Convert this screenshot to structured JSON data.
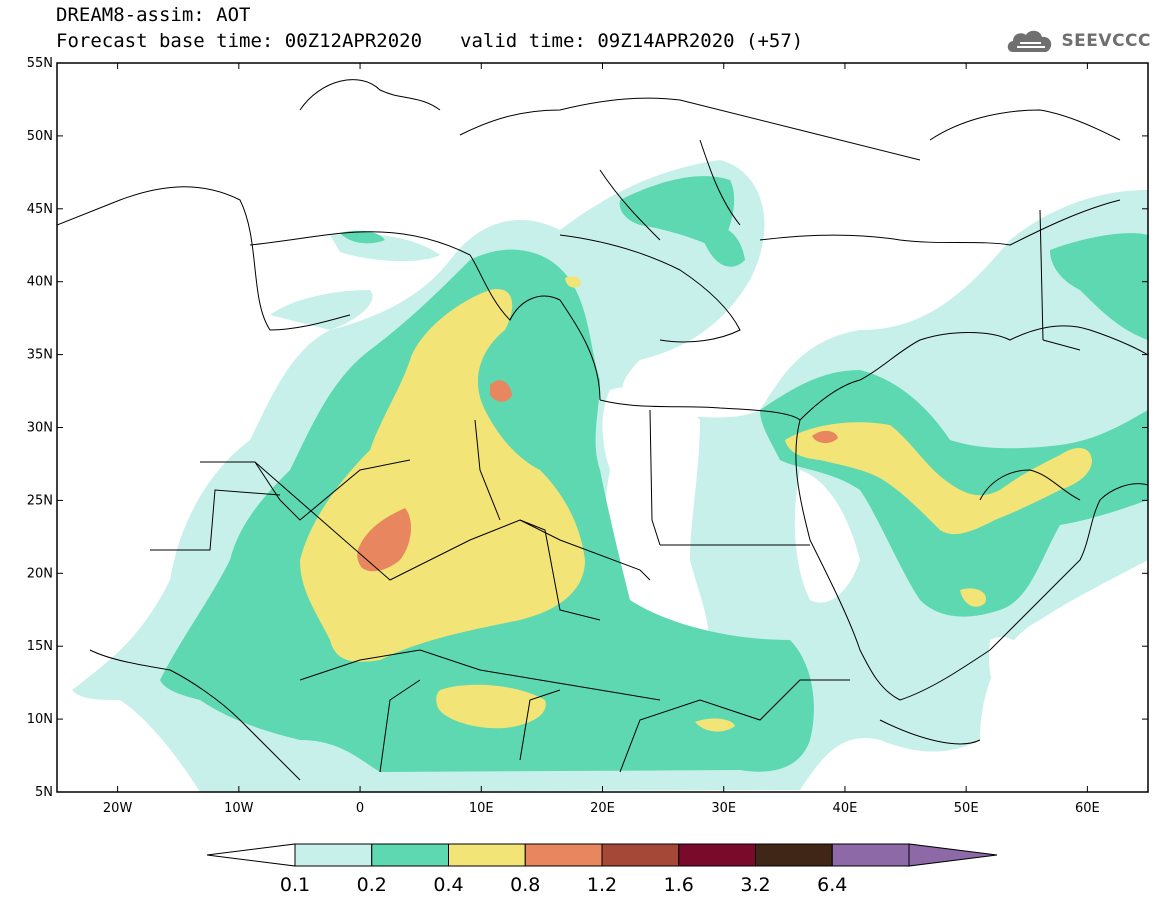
{
  "title": {
    "line1": "DREAM8-assim: AOT",
    "base": "Forecast base time: 00Z12APR2020",
    "valid": "valid time: 09Z14APR2020 (+57)"
  },
  "logo": {
    "text": "SEEVCCC",
    "icon": "cloud-icon"
  },
  "map": {
    "lon_range": [
      -25,
      65
    ],
    "lat_range": [
      5,
      55
    ],
    "lat_labels": [
      "5N",
      "10N",
      "15N",
      "20N",
      "25N",
      "30N",
      "35N",
      "40N",
      "45N",
      "50N",
      "55N"
    ],
    "lon_labels": [
      "20W",
      "10W",
      "0",
      "10E",
      "20E",
      "30E",
      "40E",
      "50E",
      "60E"
    ]
  },
  "legend": {
    "levels": [
      "0.1",
      "0.2",
      "0.4",
      "0.8",
      "1.2",
      "1.6",
      "3.2",
      "6.4"
    ],
    "colors": [
      "#ffffff",
      "#c7f0ea",
      "#5dd8b0",
      "#f2e477",
      "#e8865f",
      "#a54837",
      "#7a0a2a",
      "#3f2616",
      "#8d6aa7"
    ]
  }
}
